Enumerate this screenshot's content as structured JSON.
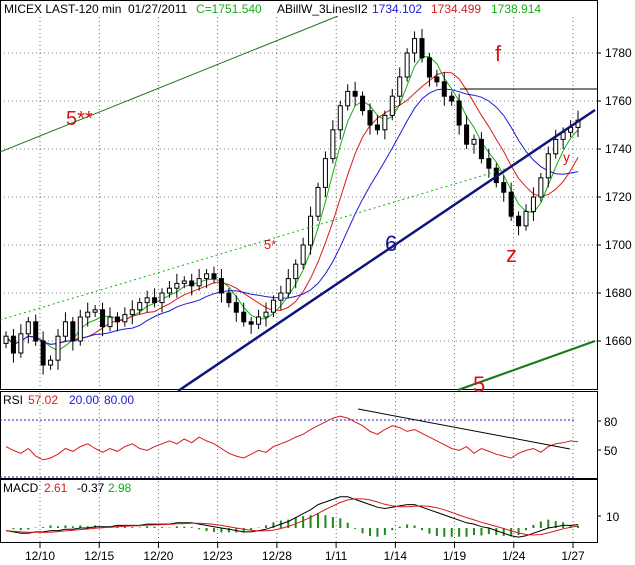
{
  "header": {
    "symbol": "MICEX LAST-120 min",
    "date": "01/27/2011",
    "close": "C=1751.540",
    "indicator": "ABillW_3LinesII2",
    "val1": "1734.102",
    "val2": "1734.499",
    "val3": "1738.914"
  },
  "colors": {
    "background": "#ffffff",
    "grid": "#000000",
    "candle": "#000000",
    "ma_blue": "#1c1cd6",
    "ma_red": "#d61c1c",
    "ma_green": "#10b010",
    "trend_navy": "#101478",
    "trend_green": "#1a7a1a",
    "annotation_red": "#dd1111",
    "annotation_blue": "#12129a",
    "rsi": "#d61c1c",
    "rsi_levels": "#1c1cd6",
    "macd_hist": "#1a8a1a"
  },
  "annotations": {
    "wave_5_stars": "5**",
    "wave_5_star": "5*",
    "wave_6": "6",
    "wave_f": "f",
    "wave_z": "z",
    "wave_y": "y",
    "wave_5": "5"
  },
  "rsi_panel": {
    "label": "RSI",
    "value": "57.02",
    "lower": "20.00",
    "upper": "80.00",
    "ticks": [
      "80",
      "50"
    ]
  },
  "macd_panel": {
    "label": "MACD",
    "value1": "2.61",
    "value2": "-0.37",
    "value3": "2.98",
    "ticks": [
      "10"
    ]
  },
  "chart_data": {
    "type": "candlestick",
    "ylim": [
      1640,
      1795
    ],
    "y_ticks": [
      1660,
      1680,
      1700,
      1720,
      1740,
      1760,
      1780
    ],
    "x_ticks": [
      "12/10",
      "12/15",
      "12/20",
      "12/23",
      "12/28",
      "1/11",
      "1/14",
      "1/19",
      "1/24",
      "1/27"
    ],
    "close": [
      1662,
      1655,
      1663,
      1668,
      1660,
      1650,
      1652,
      1662,
      1668,
      1660,
      1670,
      1672,
      1673,
      1666,
      1670,
      1668,
      1671,
      1673,
      1676,
      1678,
      1676,
      1680,
      1682,
      1684,
      1685,
      1683,
      1686,
      1688,
      1686,
      1680,
      1676,
      1672,
      1668,
      1667,
      1670,
      1672,
      1677,
      1680,
      1686,
      1692,
      1700,
      1712,
      1724,
      1736,
      1748,
      1758,
      1764,
      1762,
      1756,
      1750,
      1748,
      1754,
      1762,
      1770,
      1780,
      1786,
      1778,
      1770,
      1768,
      1762,
      1760,
      1750,
      1742,
      1744,
      1736,
      1732,
      1726,
      1722,
      1712,
      1708,
      1714,
      1720,
      1728,
      1738,
      1744,
      1747,
      1749,
      1752
    ],
    "rsi": [
      52,
      48,
      45,
      50,
      42,
      38,
      40,
      44,
      50,
      47,
      52,
      55,
      50,
      46,
      50,
      47,
      52,
      55,
      50,
      48,
      52,
      55,
      58,
      55,
      60,
      56,
      62,
      58,
      55,
      50,
      45,
      42,
      40,
      44,
      48,
      46,
      52,
      55,
      58,
      62,
      65,
      70,
      74,
      78,
      82,
      84,
      82,
      78,
      74,
      68,
      65,
      70,
      74,
      72,
      68,
      70,
      66,
      62,
      58,
      54,
      50,
      48,
      52,
      45,
      50,
      47,
      44,
      42,
      40,
      45,
      48,
      50,
      46,
      52,
      55,
      56,
      58,
      57.02
    ],
    "macd": [
      -2,
      -3,
      -4,
      -4,
      -3,
      -3,
      -2,
      -2,
      -1,
      -1,
      0,
      0,
      1,
      1,
      1,
      2,
      2,
      2,
      2,
      3,
      3,
      3,
      3,
      4,
      4,
      4,
      3,
      2,
      1,
      0,
      -1,
      -2,
      -3,
      -3,
      -2,
      -1,
      1,
      3,
      5,
      8,
      11,
      14,
      18,
      20,
      22,
      24,
      24,
      22,
      20,
      18,
      16,
      15,
      16,
      17,
      18,
      18,
      16,
      14,
      12,
      10,
      8,
      6,
      4,
      3,
      1,
      0,
      -2,
      -4,
      -6,
      -7,
      -6,
      -4,
      -2,
      0,
      1,
      2,
      2,
      2.61
    ],
    "series": [
      {
        "name": "ABillW_3LinesII2",
        "values": [
          "1734.102",
          "1734.499",
          "1738.914"
        ]
      }
    ]
  }
}
